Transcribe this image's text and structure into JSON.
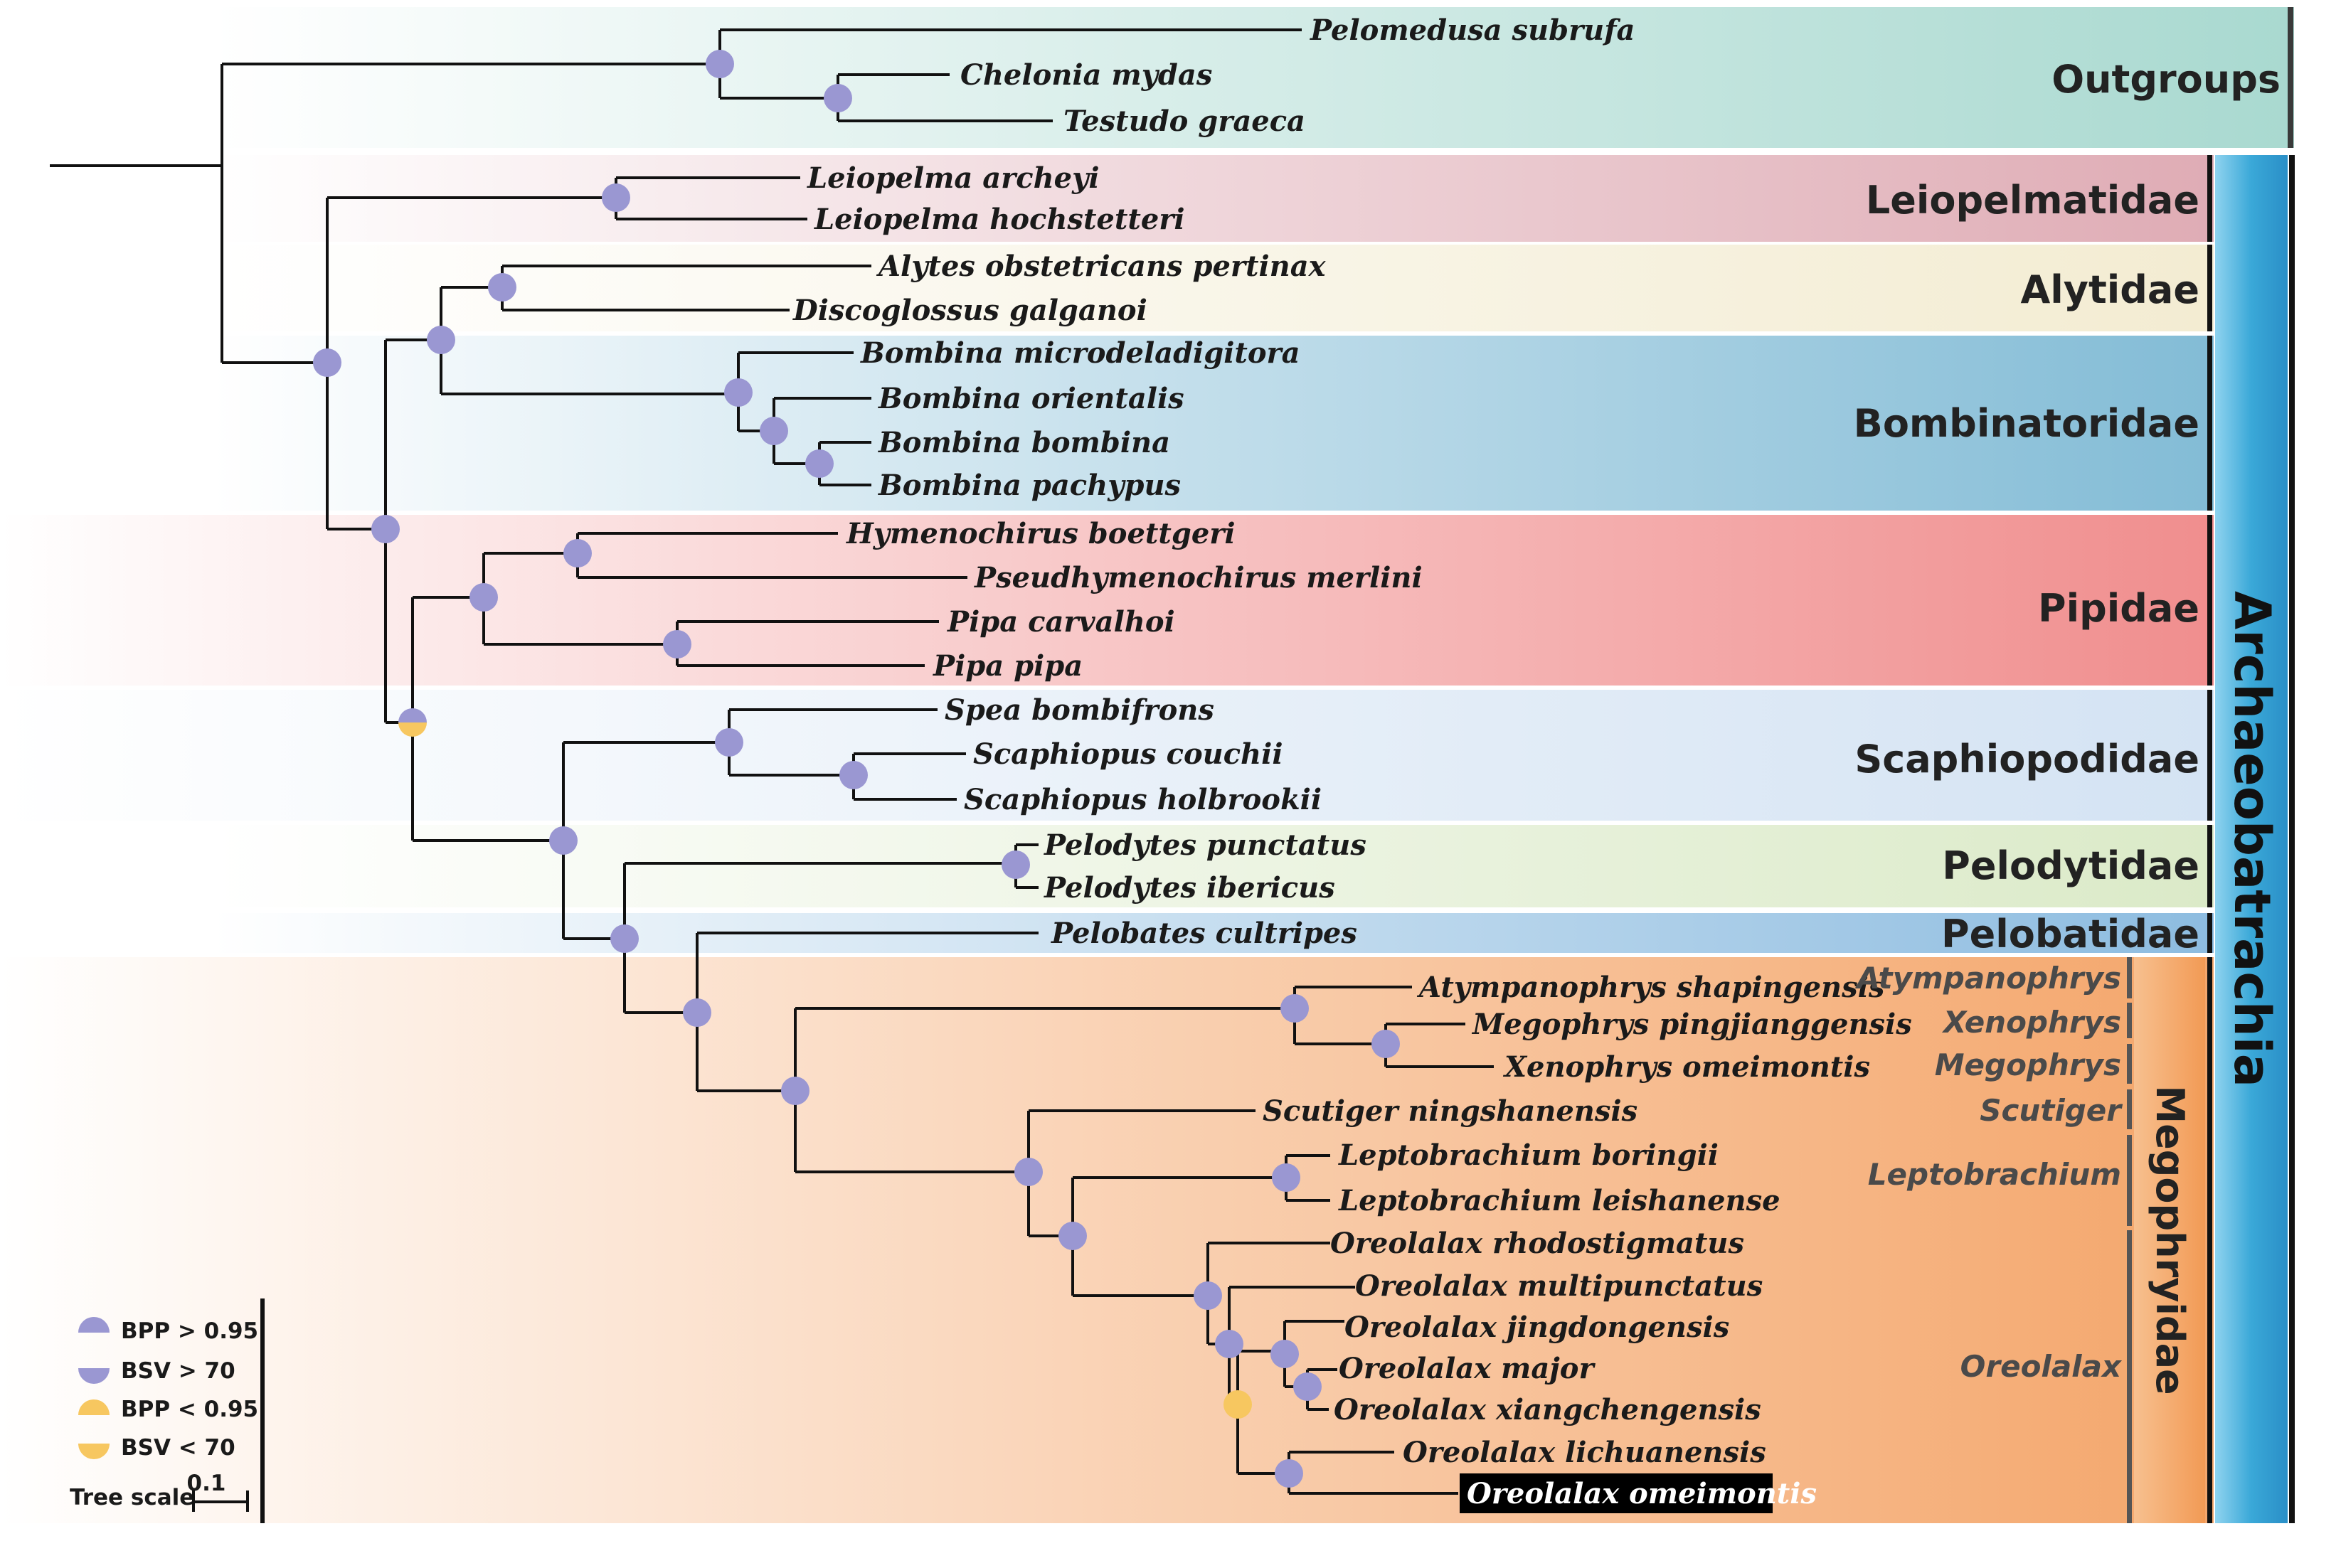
{
  "colors": {
    "node_high": "#9a97d2",
    "node_low": "#f7c760",
    "outgroups": "#a9d9d0",
    "leiopelmatidae": "#dfacb5",
    "alytidae": "#f3ecd2",
    "bombinatoridae": "#83bcd6",
    "pipidae": "#f08e8e",
    "scaphiopodidae": "#d4e3f3",
    "pelodytidae": "#dbeac8",
    "pelobatidae": "#8dbce0",
    "megophryidae": "#f4a66b",
    "archaeobatrachia_bar": "#3aa8d8",
    "megophryidae_bar": "#f29a55"
  },
  "taxa": [
    "Pelomedusa subrufa",
    "Chelonia mydas",
    "Testudo graeca",
    "Leiopelma archeyi",
    "Leiopelma hochstetteri",
    "Alytes obstetricans pertinax",
    "Discoglossus galganoi",
    "Bombina microdeladigitora",
    "Bombina orientalis",
    "Bombina bombina",
    "Bombina pachypus",
    "Hymenochirus boettgeri",
    "Pseudhymenochirus merlini",
    "Pipa carvalhoi",
    "Pipa pipa",
    "Spea bombifrons",
    "Scaphiopus couchii",
    "Scaphiopus holbrookii",
    "Pelodytes punctatus",
    "Pelodytes ibericus",
    "Pelobates cultripes",
    "Atympanophrys shapingensis",
    "Megophrys pingjianggensis",
    "Xenophrys omeimontis",
    "Scutiger ningshanensis",
    "Leptobrachium boringii",
    "Leptobrachium leishanense",
    "Oreolalax rhodostigmatus",
    "Oreolalax multipunctatus",
    "Oreolalax jingdongensis",
    "Oreolalax major",
    "Oreolalax xiangchengensis",
    "Oreolalax lichuanensis"
  ],
  "highlighted_taxon": "Oreolalax omeimontis",
  "families": [
    "Outgroups",
    "Leiopelmatidae",
    "Alytidae",
    "Bombinatoridae",
    "Pipidae",
    "Scaphiopodidae",
    "Pelodytidae",
    "Pelobatidae"
  ],
  "megophryidae_label": "Megophryidae",
  "archaeobatrachia_label": "Archaeobatrachia",
  "genera": [
    "Atympanophrys",
    "Xenophrys",
    "Megophrys",
    "Scutiger",
    "Leptobrachium",
    "Oreolalax"
  ],
  "legend": {
    "items": [
      "BPP > 0.95",
      "BSV > 70",
      "BPP < 0.95",
      "BSV < 70"
    ],
    "scale_label": "Tree scale",
    "scale_value": "0.1"
  }
}
